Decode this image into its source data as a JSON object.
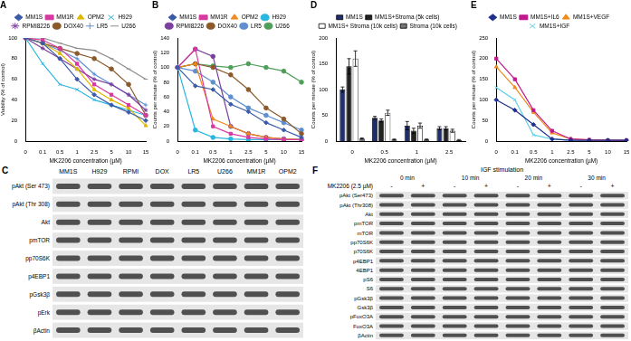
{
  "chart_data": [
    {
      "type": "line",
      "title": "A",
      "x_label": "MK2206 concentration (µM)",
      "y_label": "Viability (% of control)",
      "categories": [
        "0",
        "0.1",
        "0.5",
        "1",
        "2.5",
        "5",
        "10",
        "15"
      ],
      "ylim": [
        0,
        100
      ],
      "yticks": [
        0,
        20,
        40,
        60,
        80,
        100
      ],
      "grid": false,
      "legend": "top",
      "series": [
        {
          "name": "MM1S",
          "color": "#3b5ba9",
          "marker": "diamond",
          "values": [
            100,
            95,
            80,
            60,
            45,
            35,
            28,
            20
          ]
        },
        {
          "name": "MM1R",
          "color": "#d63aa0",
          "marker": "square",
          "values": [
            100,
            98,
            90,
            75,
            55,
            45,
            35,
            25
          ]
        },
        {
          "name": "OPM2",
          "color": "#e0b800",
          "marker": "triangle",
          "values": [
            100,
            95,
            85,
            70,
            50,
            40,
            32,
            15
          ]
        },
        {
          "name": "H929",
          "color": "#29b6e0",
          "marker": "x",
          "values": [
            100,
            75,
            55,
            50,
            40,
            35,
            30,
            25
          ]
        },
        {
          "name": "RPMI8226",
          "color": "#7b3f9e",
          "marker": "star",
          "values": [
            100,
            90,
            80,
            70,
            60,
            55,
            45,
            30
          ]
        },
        {
          "name": "DOX40",
          "color": "#8b5a2b",
          "marker": "circle",
          "values": [
            100,
            95,
            90,
            85,
            80,
            70,
            55,
            25
          ]
        },
        {
          "name": "LR5",
          "color": "#5f8fd0",
          "marker": "plus",
          "values": [
            100,
            95,
            88,
            80,
            65,
            55,
            45,
            35
          ]
        },
        {
          "name": "U266",
          "color": "#8c8c8c",
          "marker": "dash",
          "values": [
            100,
            100,
            95,
            90,
            88,
            80,
            70,
            60
          ]
        }
      ]
    },
    {
      "type": "line",
      "title": "B",
      "x_label": "MK2206 concentration (µM)",
      "y_label": "Counts per minute (% of control)",
      "categories": [
        "0",
        "0.1",
        "0.5",
        "1",
        "2.5",
        "5",
        "10",
        "15"
      ],
      "ylim": [
        0,
        140
      ],
      "yticks": [
        0,
        20,
        40,
        60,
        80,
        100,
        120,
        140
      ],
      "grid": false,
      "legend": "top",
      "series": [
        {
          "name": "MM1S",
          "color": "#3b5ba9",
          "marker": "diamond",
          "values": [
            100,
            75,
            70,
            50,
            40,
            25,
            15,
            5
          ]
        },
        {
          "name": "MM1R",
          "color": "#d63aa0",
          "marker": "square",
          "values": [
            100,
            125,
            20,
            10,
            5,
            3,
            2,
            2
          ]
        },
        {
          "name": "OPM2",
          "color": "#f08a1c",
          "marker": "triangle",
          "values": [
            100,
            105,
            30,
            20,
            10,
            5,
            3,
            2
          ]
        },
        {
          "name": "H929",
          "color": "#29b6e0",
          "marker": "circle",
          "values": [
            100,
            15,
            5,
            3,
            2,
            2,
            2,
            2
          ]
        },
        {
          "name": "RPMI8226",
          "color": "#7b3f9e",
          "marker": "circle",
          "values": [
            100,
            125,
            115,
            20,
            10,
            5,
            3,
            2
          ]
        },
        {
          "name": "DOX40",
          "color": "#8b5a2b",
          "marker": "circle",
          "values": [
            100,
            105,
            100,
            90,
            70,
            45,
            30,
            10
          ]
        },
        {
          "name": "LR5",
          "color": "#5f8fd0",
          "marker": "circle",
          "values": [
            100,
            95,
            80,
            60,
            45,
            35,
            25,
            15
          ]
        },
        {
          "name": "U266",
          "color": "#4f9e5a",
          "marker": "circle",
          "values": [
            100,
            105,
            102,
            100,
            105,
            100,
            95,
            80
          ]
        }
      ]
    },
    {
      "type": "bar",
      "title": "D",
      "x_label": "MK2206 concentration (µM)",
      "y_label": "Counts per minute (% of control)",
      "categories": [
        "0",
        "0.5",
        "1",
        "2.5"
      ],
      "ylim": [
        0,
        200
      ],
      "yticks": [
        0,
        50,
        100,
        150,
        200
      ],
      "grid": false,
      "legend": "top",
      "series": [
        {
          "name": "MM1S",
          "color": "#1f2f6b",
          "values": [
            100,
            45,
            30,
            25
          ],
          "errors": [
            5,
            3,
            8,
            3
          ]
        },
        {
          "name": "MM1S+Stroma (5k cells)",
          "color": "#222222",
          "values": [
            145,
            40,
            20,
            25
          ],
          "errors": [
            15,
            3,
            5,
            3
          ]
        },
        {
          "name": "MM1S+ Stroma (10k cells)",
          "color": "#ffffff",
          "values": [
            160,
            55,
            30,
            20
          ],
          "errors": [
            15,
            5,
            5,
            3
          ]
        },
        {
          "name": "Stroma (10k cells)",
          "color": "#777777",
          "values": [
            5,
            3,
            3,
            2
          ],
          "errors": [
            1,
            1,
            1,
            1
          ]
        }
      ]
    },
    {
      "type": "line",
      "title": "E",
      "x_label": "MK2206 concentration (µM)",
      "y_label": "Counts per minute (% of control)",
      "categories": [
        "0",
        "0.1",
        "0.5",
        "1",
        "2.5",
        "5",
        "10",
        "15"
      ],
      "ylim": [
        0,
        250
      ],
      "yticks": [
        0,
        50,
        100,
        150,
        200,
        250
      ],
      "grid": false,
      "legend": "top",
      "series": [
        {
          "name": "MM1S",
          "color": "#1f2f8b",
          "marker": "diamond",
          "values": [
            100,
            75,
            40,
            5,
            2,
            2,
            2,
            2
          ]
        },
        {
          "name": "MM1S+IL6",
          "color": "#c2188f",
          "marker": "square",
          "values": [
            200,
            150,
            75,
            25,
            5,
            3,
            2,
            2
          ]
        },
        {
          "name": "MM1S+VEGF",
          "color": "#f08a1c",
          "marker": "triangle",
          "values": [
            180,
            130,
            70,
            20,
            5,
            3,
            2,
            2
          ]
        },
        {
          "name": "MM1S+IGF",
          "color": "#5fd0e8",
          "marker": "x",
          "values": [
            130,
            100,
            15,
            5,
            2,
            2,
            2,
            2
          ]
        }
      ]
    }
  ],
  "panels": {
    "C": {
      "label": "C",
      "columns": [
        "MM1S",
        "H929",
        "RPMI",
        "DOX",
        "LR5",
        "U266",
        "MM1R",
        "OPM2"
      ],
      "rows": [
        "pAkt (Ser 473)",
        "pAkt (Thr 308)",
        "Akt",
        "pmTOR",
        "pp70S6K",
        "p4EBP1",
        "pGsk3β",
        "pErk",
        "βActin"
      ]
    },
    "F": {
      "label": "F",
      "title": "IGF stimulation",
      "treatment": "MK2206 (2.5 µM)",
      "times": [
        "0 min",
        "10 min",
        "20 min",
        "30 min"
      ],
      "signs": [
        "-",
        "+"
      ],
      "rows": [
        "pAkt (Ser473)",
        "pAkt (Thr308)",
        "Akt",
        "pmTOR",
        "mTOR",
        "pp70S6K",
        "p70S6K",
        "p4EBP1",
        "4EBP1",
        "pS6",
        "S6",
        "pGsk3β",
        "Gsk3β",
        "pFoxO3A",
        "FoxO3A",
        "βActin"
      ]
    }
  }
}
